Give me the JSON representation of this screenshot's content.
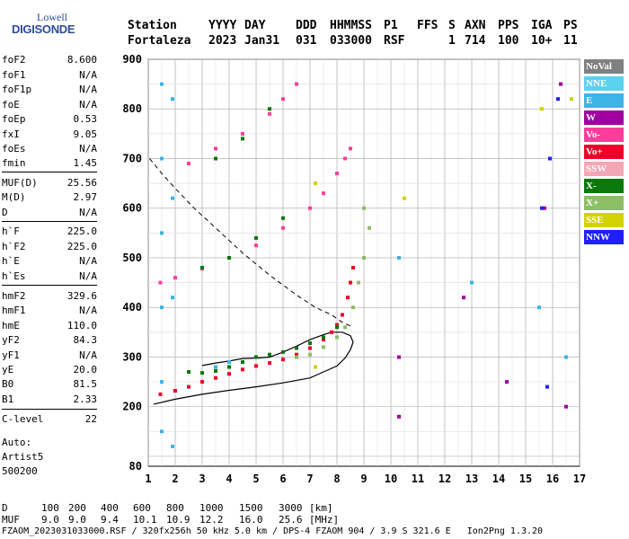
{
  "logo": {
    "top": "Lowell",
    "bottom": "DIGISONDE"
  },
  "header": {
    "labels": [
      "Station",
      "YYYY",
      "DAY",
      "DDD",
      "HHMMSS",
      "P1",
      "FFS",
      "S",
      "AXN",
      "PPS",
      "IGA",
      "PS"
    ],
    "values": [
      "Fortaleza",
      "2023",
      "Jan31",
      "031",
      "033000",
      "RSF",
      "1",
      "714",
      "100",
      "10+",
      "11"
    ]
  },
  "params": [
    {
      "name": "foF2",
      "value": "8.600"
    },
    {
      "name": "foF1",
      "value": "N/A"
    },
    {
      "name": "foF1p",
      "value": "N/A"
    },
    {
      "name": "foE",
      "value": "N/A"
    },
    {
      "name": "foEp",
      "value": "0.53"
    },
    {
      "name": "fxI",
      "value": "9.05"
    },
    {
      "name": "foEs",
      "value": "N/A"
    },
    {
      "name": "fmin",
      "value": "1.45"
    },
    {
      "name": "MUF(D)",
      "value": "25.56"
    },
    {
      "name": "M(D)",
      "value": "2.97"
    },
    {
      "name": "D",
      "value": "N/A"
    },
    {
      "name": "h`F",
      "value": "225.0"
    },
    {
      "name": "h`F2",
      "value": "225.0"
    },
    {
      "name": "h`E",
      "value": "N/A"
    },
    {
      "name": "h`Es",
      "value": "N/A"
    },
    {
      "name": "hmF2",
      "value": "329.6"
    },
    {
      "name": "hmF1",
      "value": "N/A"
    },
    {
      "name": "hmE",
      "value": "110.0"
    },
    {
      "name": "yF2",
      "value": "84.3"
    },
    {
      "name": "yF1",
      "value": "N/A"
    },
    {
      "name": "yE",
      "value": "20.0"
    },
    {
      "name": "B0",
      "value": "81.5"
    },
    {
      "name": "B1",
      "value": "2.33"
    },
    {
      "name": "C-level",
      "value": "22"
    }
  ],
  "auto": {
    "line1": "Auto:",
    "line2": "Artist5",
    "line3": "500200"
  },
  "legend": [
    {
      "label": "NoVal",
      "color": "#808080"
    },
    {
      "label": "NNE",
      "color": "#5ad2f0"
    },
    {
      "label": "E",
      "color": "#3cb4e6"
    },
    {
      "label": "W",
      "color": "#a000a0"
    },
    {
      "label": "Vo-",
      "color": "#ff3c9c"
    },
    {
      "label": "Vo+",
      "color": "#f00028"
    },
    {
      "label": "SSW",
      "color": "#f4a6b4"
    },
    {
      "label": "X-",
      "color": "#0a780a"
    },
    {
      "label": "X+",
      "color": "#8cbe64"
    },
    {
      "label": "SSE",
      "color": "#d2d200"
    },
    {
      "label": "NNW",
      "color": "#1e1eff"
    }
  ],
  "footer": {
    "d_row": {
      "label": "D",
      "values": [
        "100",
        "200",
        "400",
        "600",
        "800",
        "1000",
        "1500",
        "3000",
        "[km]"
      ]
    },
    "muf_row": {
      "label": "MUF",
      "values": [
        "9.0",
        "9.0",
        "9.4",
        "10.1",
        "10.9",
        "12.2",
        "16.0",
        "25.6",
        "[MHz]"
      ]
    },
    "bottom": "FZAOM_2023031033000.RSF / 320fx256h 50 kHz 5.0 km / DPS-4 FZAOM 904 / 3.9 S 321.6 E   Ion2Png 1.3.20"
  },
  "chart_data": {
    "type": "scatter",
    "xlabel": "",
    "ylabel": "",
    "xlim": [
      1,
      17
    ],
    "ylim": [
      80,
      900
    ],
    "x_ticks": [
      1,
      2,
      3,
      4,
      5,
      6,
      7,
      8,
      9,
      10,
      11,
      12,
      13,
      14,
      15,
      16,
      17
    ],
    "y_ticks": [
      200,
      300,
      400,
      500,
      600,
      700,
      800,
      900
    ],
    "y_tick_bottom": "80",
    "grid": true,
    "series": [
      {
        "name": "Vo+",
        "color": "#f00028",
        "points": [
          [
            1.45,
            225
          ],
          [
            2,
            232
          ],
          [
            2.5,
            240
          ],
          [
            3,
            250
          ],
          [
            3.5,
            258
          ],
          [
            4,
            266
          ],
          [
            4.5,
            275
          ],
          [
            5,
            282
          ],
          [
            5.5,
            288
          ],
          [
            6,
            295
          ],
          [
            6.5,
            305
          ],
          [
            7,
            318
          ],
          [
            7.5,
            335
          ],
          [
            7.8,
            350
          ],
          [
            8,
            365
          ],
          [
            8.2,
            385
          ],
          [
            8.4,
            420
          ],
          [
            8.5,
            450
          ],
          [
            8.6,
            480
          ]
        ]
      },
      {
        "name": "Vo-",
        "color": "#ff3c9c",
        "points": [
          [
            1.45,
            450
          ],
          [
            2,
            460
          ],
          [
            3,
            478
          ],
          [
            4,
            500
          ],
          [
            5,
            525
          ],
          [
            6,
            560
          ],
          [
            7,
            600
          ],
          [
            7.5,
            630
          ],
          [
            8,
            670
          ],
          [
            8.3,
            700
          ],
          [
            8.5,
            720
          ],
          [
            2.5,
            690
          ],
          [
            3.5,
            720
          ],
          [
            4.5,
            750
          ],
          [
            5.5,
            790
          ],
          [
            6,
            820
          ],
          [
            6.5,
            850
          ]
        ]
      },
      {
        "name": "X-",
        "color": "#0a780a",
        "points": [
          [
            2.5,
            270
          ],
          [
            3,
            268
          ],
          [
            3.5,
            272
          ],
          [
            4,
            280
          ],
          [
            4.5,
            290
          ],
          [
            5,
            300
          ],
          [
            5.5,
            305
          ],
          [
            6,
            310
          ],
          [
            6.5,
            318
          ],
          [
            7,
            328
          ],
          [
            7.5,
            340
          ],
          [
            8,
            360
          ],
          [
            3,
            480
          ],
          [
            4,
            500
          ],
          [
            5,
            540
          ],
          [
            6,
            580
          ],
          [
            3.5,
            700
          ],
          [
            4.5,
            740
          ],
          [
            5.5,
            800
          ]
        ]
      },
      {
        "name": "X+",
        "color": "#8cbe64",
        "points": [
          [
            6.5,
            300
          ],
          [
            7,
            305
          ],
          [
            7.5,
            320
          ],
          [
            8,
            340
          ],
          [
            8.3,
            360
          ],
          [
            8.6,
            400
          ],
          [
            8.8,
            450
          ],
          [
            9,
            500
          ],
          [
            9.2,
            560
          ],
          [
            9,
            600
          ]
        ]
      },
      {
        "name": "E",
        "color": "#3cb4e6",
        "points": [
          [
            1.5,
            850
          ],
          [
            1.5,
            700
          ],
          [
            1.5,
            550
          ],
          [
            1.5,
            400
          ],
          [
            1.5,
            250
          ],
          [
            1.5,
            150
          ],
          [
            1.9,
            820
          ],
          [
            1.9,
            620
          ],
          [
            1.9,
            420
          ],
          [
            1.9,
            120
          ],
          [
            3.5,
            280
          ],
          [
            4,
            290
          ],
          [
            10.3,
            500
          ],
          [
            13,
            450
          ],
          [
            15.5,
            400
          ],
          [
            16.5,
            300
          ]
        ]
      },
      {
        "name": "W",
        "color": "#a000a0",
        "points": [
          [
            10.3,
            300
          ],
          [
            10.3,
            180
          ],
          [
            12.7,
            420
          ],
          [
            14.3,
            250
          ],
          [
            15.7,
            600
          ],
          [
            16.3,
            850
          ],
          [
            16.5,
            200
          ]
        ]
      },
      {
        "name": "SSE",
        "color": "#d2d200",
        "points": [
          [
            7.2,
            650
          ],
          [
            7.2,
            280
          ],
          [
            10.5,
            620
          ],
          [
            15.6,
            800
          ],
          [
            16.7,
            820
          ]
        ]
      },
      {
        "name": "NNW",
        "color": "#1e1eff",
        "points": [
          [
            15.6,
            600
          ],
          [
            15.9,
            700
          ],
          [
            16.2,
            820
          ],
          [
            15.8,
            240
          ]
        ]
      }
    ],
    "profile": {
      "solid": [
        [
          1.2,
          205
        ],
        [
          2,
          215
        ],
        [
          3,
          225
        ],
        [
          4,
          233
        ],
        [
          5,
          240
        ],
        [
          6,
          248
        ],
        [
          7,
          258
        ],
        [
          7.5,
          270
        ],
        [
          8,
          282
        ],
        [
          8.3,
          298
        ],
        [
          8.5,
          315
        ],
        [
          8.6,
          330
        ],
        [
          8.5,
          343
        ],
        [
          8.2,
          350
        ],
        [
          7.8,
          350
        ],
        [
          7.5,
          345
        ],
        [
          7,
          335
        ],
        [
          6.5,
          322
        ],
        [
          6,
          310
        ],
        [
          5.5,
          300
        ],
        [
          5,
          298
        ],
        [
          4.5,
          297
        ],
        [
          4,
          292
        ],
        [
          3.5,
          288
        ],
        [
          3,
          283
        ]
      ],
      "dashed": [
        [
          1.05,
          700
        ],
        [
          1.5,
          670
        ],
        [
          2,
          640
        ],
        [
          2.7,
          600
        ],
        [
          3.5,
          560
        ],
        [
          4.5,
          510
        ],
        [
          5.5,
          465
        ],
        [
          6.5,
          425
        ],
        [
          7.2,
          400
        ],
        [
          7.8,
          385
        ],
        [
          8.2,
          370
        ],
        [
          8.6,
          360
        ]
      ]
    }
  }
}
